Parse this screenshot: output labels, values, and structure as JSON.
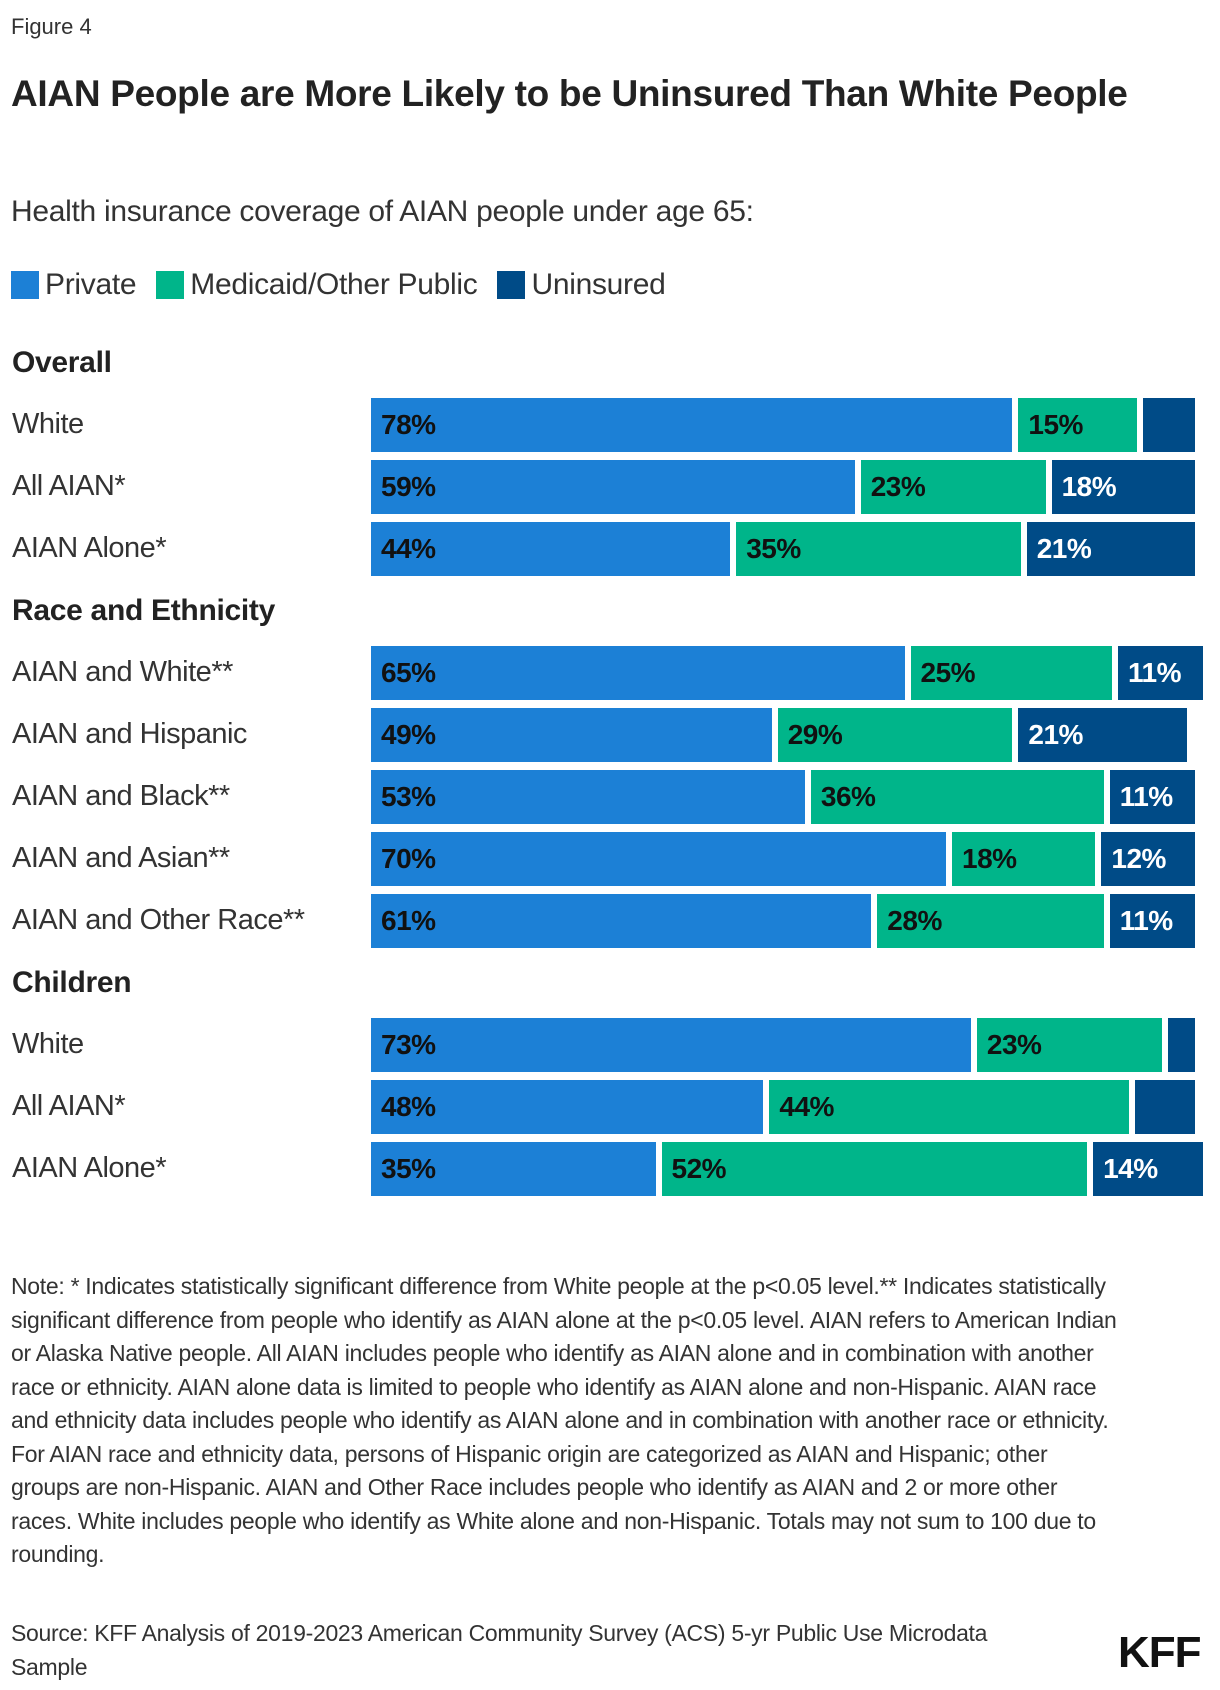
{
  "figure_label": "Figure 4",
  "title": "AIAN People are More Likely to be Uninsured Than White People",
  "subtitle": "Health insurance coverage of AIAN people under age 65:",
  "logo": "KFF",
  "chart_data": {
    "type": "bar",
    "orientation": "horizontal",
    "stacked": true,
    "title": "AIAN People are More Likely to be Uninsured Than White People",
    "subtitle": "Health insurance coverage of AIAN people under age 65:",
    "legend_position": "top-left",
    "grid": false,
    "series": [
      {
        "name": "Private",
        "color": "#1c80d6"
      },
      {
        "name": "Medicaid/Other Public",
        "color": "#00b58a"
      },
      {
        "name": "Uninsured",
        "color": "#004b87"
      }
    ],
    "groups": [
      {
        "name": "Overall",
        "rows": [
          {
            "label": "White",
            "values": [
              78,
              15,
              7
            ],
            "labels": [
              "78%",
              "15%",
              ""
            ]
          },
          {
            "label": "All AIAN*",
            "values": [
              59,
              23,
              18
            ],
            "labels": [
              "59%",
              "23%",
              "18%"
            ]
          },
          {
            "label": "AIAN Alone*",
            "values": [
              44,
              35,
              21
            ],
            "labels": [
              "44%",
              "35%",
              "21%"
            ]
          }
        ]
      },
      {
        "name": "Race and Ethnicity",
        "rows": [
          {
            "label": "AIAN and White**",
            "values": [
              65,
              25,
              11
            ],
            "labels": [
              "65%",
              "25%",
              "11%"
            ]
          },
          {
            "label": "AIAN and Hispanic",
            "values": [
              49,
              29,
              21
            ],
            "labels": [
              "49%",
              "29%",
              "21%"
            ]
          },
          {
            "label": "AIAN and Black**",
            "values": [
              53,
              36,
              11
            ],
            "labels": [
              "53%",
              "36%",
              "11%"
            ]
          },
          {
            "label": "AIAN and Asian**",
            "values": [
              70,
              18,
              12
            ],
            "labels": [
              "70%",
              "18%",
              "12%"
            ]
          },
          {
            "label": "AIAN and Other Race**",
            "values": [
              61,
              28,
              11
            ],
            "labels": [
              "61%",
              "28%",
              "11%"
            ]
          }
        ]
      },
      {
        "name": "Children",
        "rows": [
          {
            "label": "White",
            "values": [
              73,
              23,
              4
            ],
            "labels": [
              "73%",
              "23%",
              ""
            ]
          },
          {
            "label": "All AIAN*",
            "values": [
              48,
              44,
              8
            ],
            "labels": [
              "48%",
              "44%",
              ""
            ]
          },
          {
            "label": "AIAN Alone*",
            "values": [
              35,
              52,
              14
            ],
            "labels": [
              "35%",
              "52%",
              "14%"
            ]
          }
        ]
      }
    ]
  },
  "notes": "Note: * Indicates statistically significant difference from White people at the p<0.05 level.** Indicates statistically significant difference from people who identify as AIAN alone at the p<0.05 level. AIAN refers to American Indian or Alaska Native people. All AIAN includes people who identify as AIAN alone and in combination with another race or ethnicity. AIAN alone data is limited to people who identify as AIAN alone and non-Hispanic. AIAN race and ethnicity data includes people who identify as AIAN alone and in combination with another race or ethnicity. For AIAN race and ethnicity data, persons of Hispanic origin are categorized as AIAN and Hispanic; other groups are non-Hispanic. AIAN and Other Race includes people who identify as AIAN and 2 or more other races. White includes people who identify as White alone and non-Hispanic. Totals may not sum to 100 due to rounding.",
  "source": "Source: KFF Analysis of 2019-2023 American Community Survey (ACS) 5-yr Public Use Microdata Sample"
}
